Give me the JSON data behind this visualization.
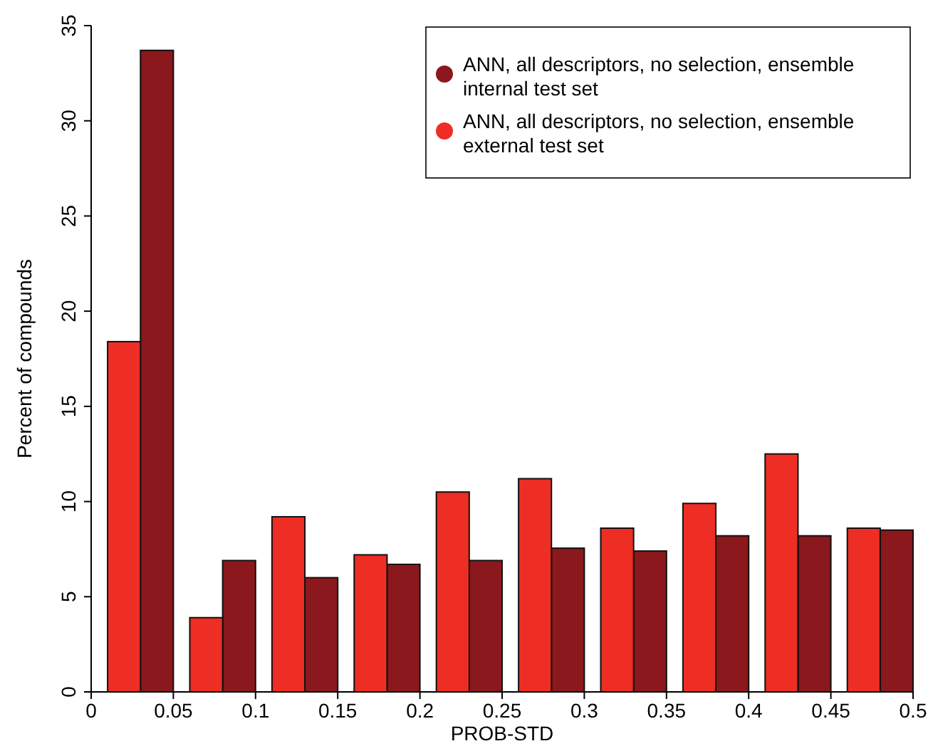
{
  "chart_data": {
    "type": "histogram",
    "xlabel": "PROB-STD",
    "ylabel": "Percent of compounds",
    "bins": [
      0,
      0.05,
      0.1,
      0.15,
      0.2,
      0.25,
      0.3,
      0.35,
      0.4,
      0.45,
      0.5
    ],
    "series": [
      {
        "name": "ANN, all descriptors, no selection, ensemble\ninternal test set",
        "color": "#8b181c",
        "values": [
          33.7,
          6.9,
          6.0,
          6.7,
          6.9,
          7.55,
          7.4,
          8.2,
          8.2,
          8.5
        ]
      },
      {
        "name": "ANN, all descriptors, no selection, ensemble\nexternal test set",
        "color": "#ee2e24",
        "values": [
          18.4,
          3.9,
          9.2,
          7.2,
          10.5,
          11.2,
          8.6,
          9.9,
          12.5,
          8.6
        ]
      }
    ],
    "xlim": [
      0,
      0.5
    ],
    "xticks": [
      0,
      0.05,
      0.1,
      0.15,
      0.2,
      0.25,
      0.3,
      0.35,
      0.4,
      0.45,
      0.5
    ],
    "ylim": [
      0,
      35
    ],
    "yticks": [
      0,
      5,
      10,
      15,
      20,
      25,
      30,
      35
    ],
    "grid": false,
    "legend": "top right"
  }
}
